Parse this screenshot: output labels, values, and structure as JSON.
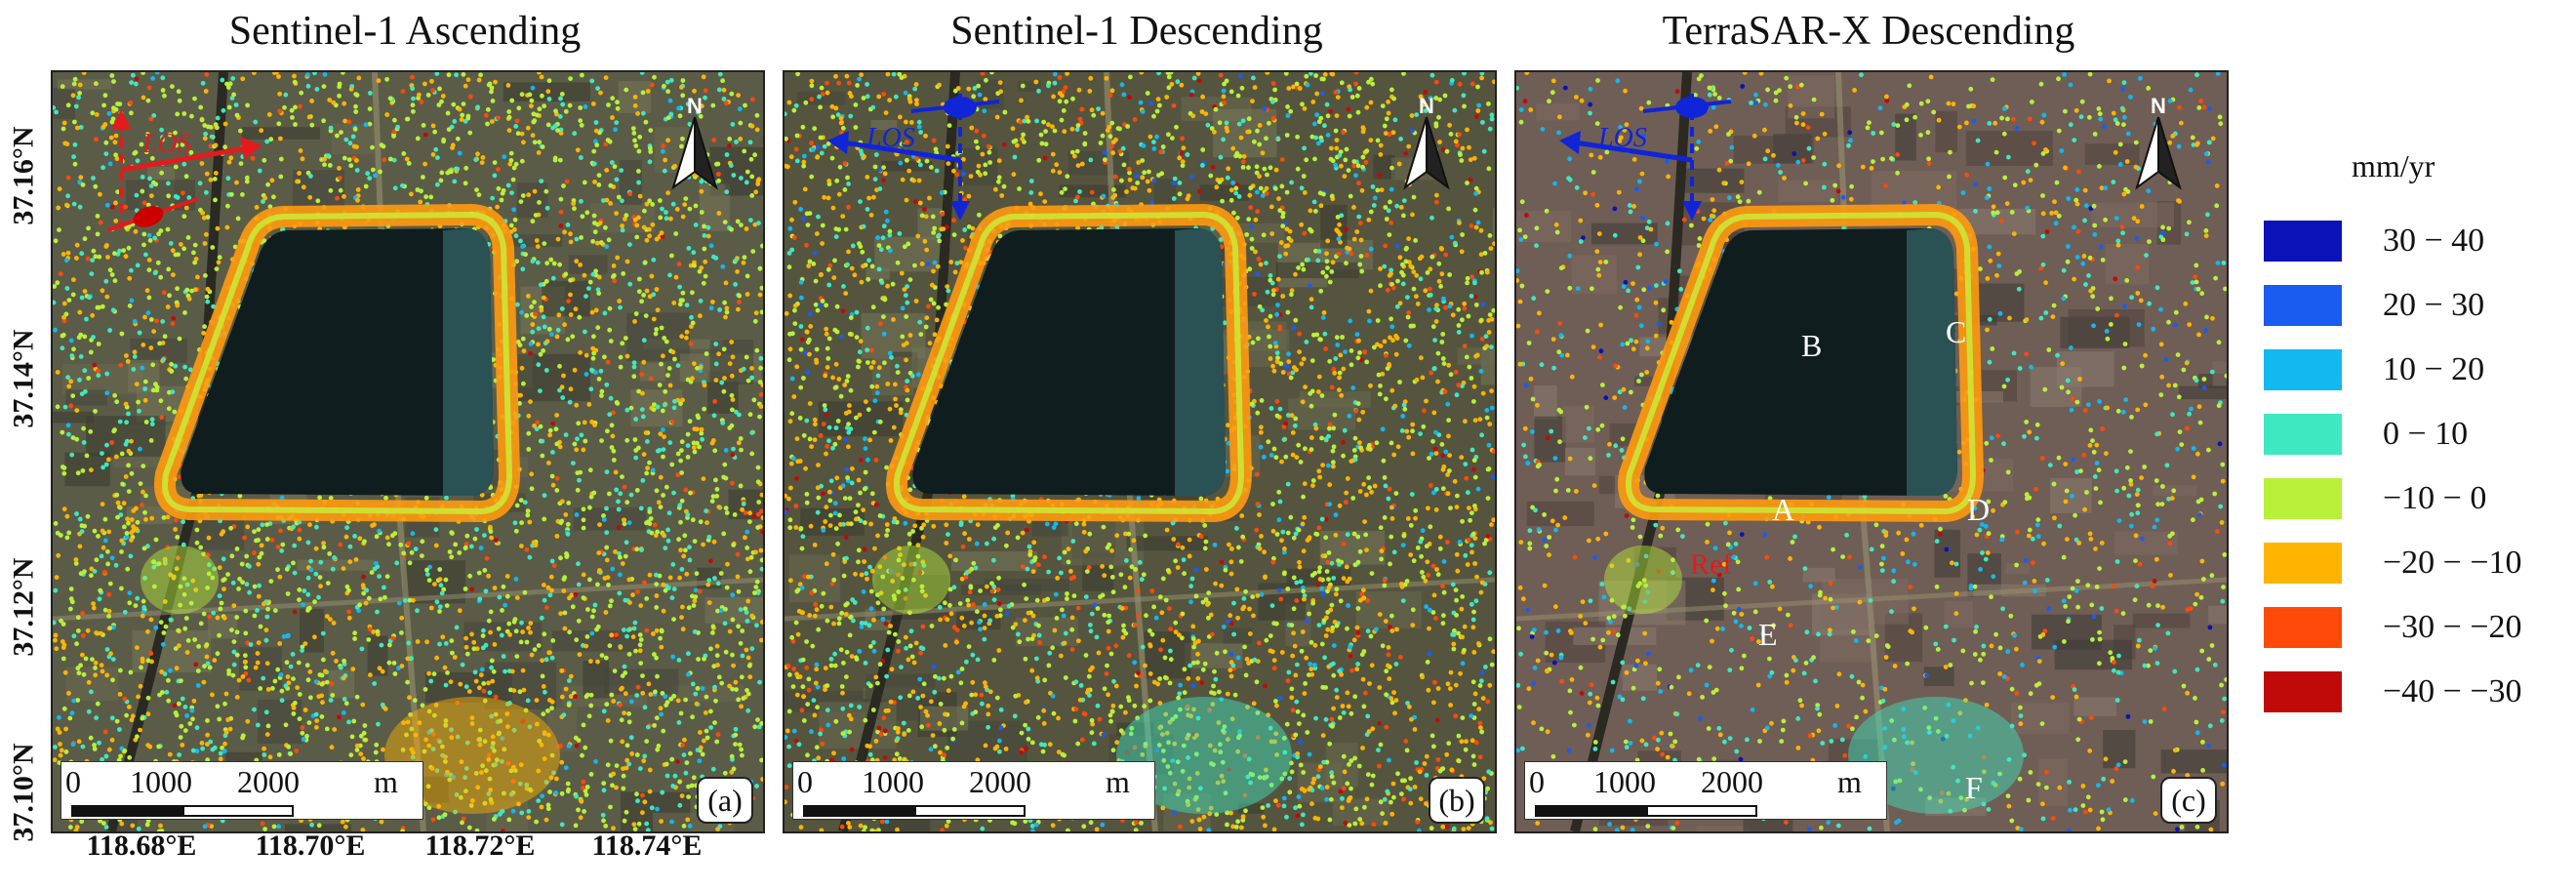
{
  "panels": [
    {
      "title": "Sentinel-1 Ascending",
      "tag": "(a)",
      "los_label": "LOS",
      "los_color": "#e41a1c",
      "points": [],
      "ref_label": ""
    },
    {
      "title": "Sentinel-1 Descending",
      "tag": "(b)",
      "los_label": "LOS",
      "los_color": "#1024d8",
      "points": [],
      "ref_label": ""
    },
    {
      "title": "TerraSAR-X  Descending",
      "tag": "(c)",
      "los_label": "LOS",
      "los_color": "#1024d8",
      "points": [
        "A",
        "B",
        "C",
        "D",
        "E",
        "F"
      ],
      "ref_label": "Ref"
    }
  ],
  "north_label": "N",
  "scalebar": {
    "zero": "0",
    "mid": "1000",
    "end": "2000",
    "unit": "m"
  },
  "lat_labels": [
    "37.16°N",
    "37.14°N",
    "37.12°N",
    "37.10°N"
  ],
  "lon_labels": [
    "118.68°E",
    "118.70°E",
    "118.72°E",
    "118.74°E"
  ],
  "legend": {
    "unit": "mm/yr",
    "classes": [
      {
        "label": "30 − 40",
        "color": "#0a12b8"
      },
      {
        "label": "20 − 30",
        "color": "#1a5cf0"
      },
      {
        "label": "10 − 20",
        "color": "#12b8f0"
      },
      {
        "label": "0 − 10",
        "color": "#3ee8c0"
      },
      {
        "label": "−10 − 0",
        "color": "#b8f03a"
      },
      {
        "label": "−20 − −10",
        "color": "#ffb400"
      },
      {
        "label": "−30 − −20",
        "color": "#ff4a0a"
      },
      {
        "label": "−40 − −30",
        "color": "#c00a0a"
      }
    ]
  }
}
